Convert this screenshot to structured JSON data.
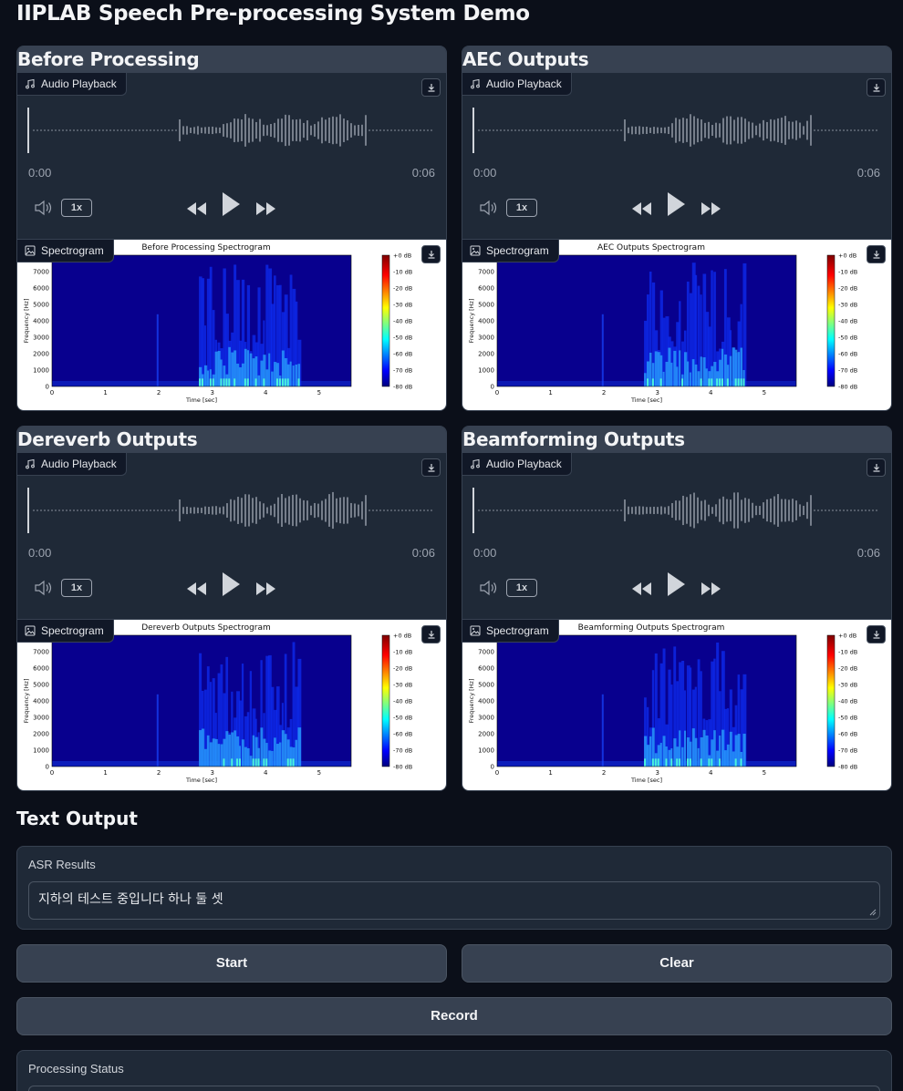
{
  "app": {
    "title": "IIPLAB Speech Pre-processing System Demo"
  },
  "common": {
    "audio_label": "Audio Playback",
    "spectrogram_label": "Spectrogram",
    "time_start": "0:00",
    "time_end": "0:06",
    "playback_rate": "1x"
  },
  "panels": [
    {
      "title": "Before Processing",
      "spec_title": "Before Processing Spectrogram",
      "noise_floor": 0.25
    },
    {
      "title": "AEC Outputs",
      "spec_title": "AEC Outputs Spectrogram",
      "noise_floor": 0.2
    },
    {
      "title": "Dereverb Outputs",
      "spec_title": "Dereverb Outputs Spectrogram",
      "noise_floor": 0.3
    },
    {
      "title": "Beamforming Outputs",
      "spec_title": "Beamforming Outputs Spectrogram",
      "noise_floor": 0.3
    }
  ],
  "spectrogram_axes": {
    "y_label": "Frequency [Hz]",
    "x_label": "Time [sec]",
    "y_ticks": [
      "0",
      "1000",
      "2000",
      "3000",
      "4000",
      "5000",
      "6000",
      "7000"
    ],
    "x_ticks": [
      "0",
      "1",
      "2",
      "3",
      "4",
      "5"
    ],
    "colorbar_ticks": [
      "+0 dB",
      "-10 dB",
      "-20 dB",
      "-30 dB",
      "-40 dB",
      "-50 dB",
      "-60 dB",
      "-70 dB",
      "-80 dB"
    ]
  },
  "text_output": {
    "section_title": "Text Output",
    "asr_label": "ASR Results",
    "asr_value": "지하의 테스트 중입니다 하나 둘 셋"
  },
  "buttons": {
    "start": "Start",
    "clear": "Clear",
    "record": "Record"
  },
  "status": {
    "label": "Processing Status"
  },
  "colors": {
    "background": "#0b0f19",
    "panel": "#1f2937",
    "panel_header": "#374151",
    "button": "#374151"
  }
}
